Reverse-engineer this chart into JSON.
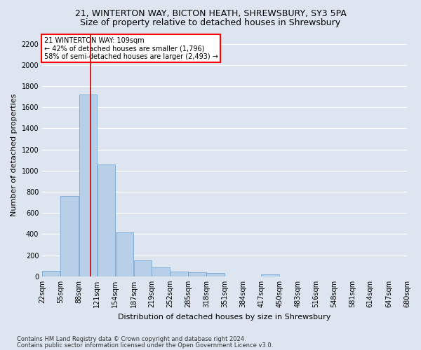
{
  "title1": "21, WINTERTON WAY, BICTON HEATH, SHREWSBURY, SY3 5PA",
  "title2": "Size of property relative to detached houses in Shrewsbury",
  "xlabel": "Distribution of detached houses by size in Shrewsbury",
  "ylabel": "Number of detached properties",
  "footer1": "Contains HM Land Registry data © Crown copyright and database right 2024.",
  "footer2": "Contains public sector information licensed under the Open Government Licence v3.0.",
  "annotation_line1": "21 WINTERTON WAY: 109sqm",
  "annotation_line2": "← 42% of detached houses are smaller (1,796)",
  "annotation_line3": "58% of semi-detached houses are larger (2,493) →",
  "bar_edges": [
    22,
    55,
    88,
    121,
    154,
    187,
    219,
    252,
    285,
    318,
    351,
    384,
    417,
    450,
    483,
    516,
    548,
    581,
    614,
    647,
    680
  ],
  "bar_heights": [
    55,
    760,
    1720,
    1060,
    415,
    150,
    85,
    48,
    40,
    30,
    0,
    0,
    20,
    0,
    0,
    0,
    0,
    0,
    0,
    0
  ],
  "bar_color": "#b8cfe8",
  "bar_edgecolor": "#6a9fd0",
  "vline_x": 109,
  "vline_color": "#cc0000",
  "ylim": [
    0,
    2300
  ],
  "yticks": [
    0,
    200,
    400,
    600,
    800,
    1000,
    1200,
    1400,
    1600,
    1800,
    2000,
    2200
  ],
  "background_color": "#dde6f0",
  "plot_bg_color": "#dde6f0",
  "grid_color": "#ffffff",
  "title1_fontsize": 9,
  "title2_fontsize": 9,
  "axis_tick_fontsize": 7,
  "ylabel_fontsize": 8,
  "xlabel_fontsize": 8,
  "annotation_fontsize": 7,
  "footer_fontsize": 6
}
